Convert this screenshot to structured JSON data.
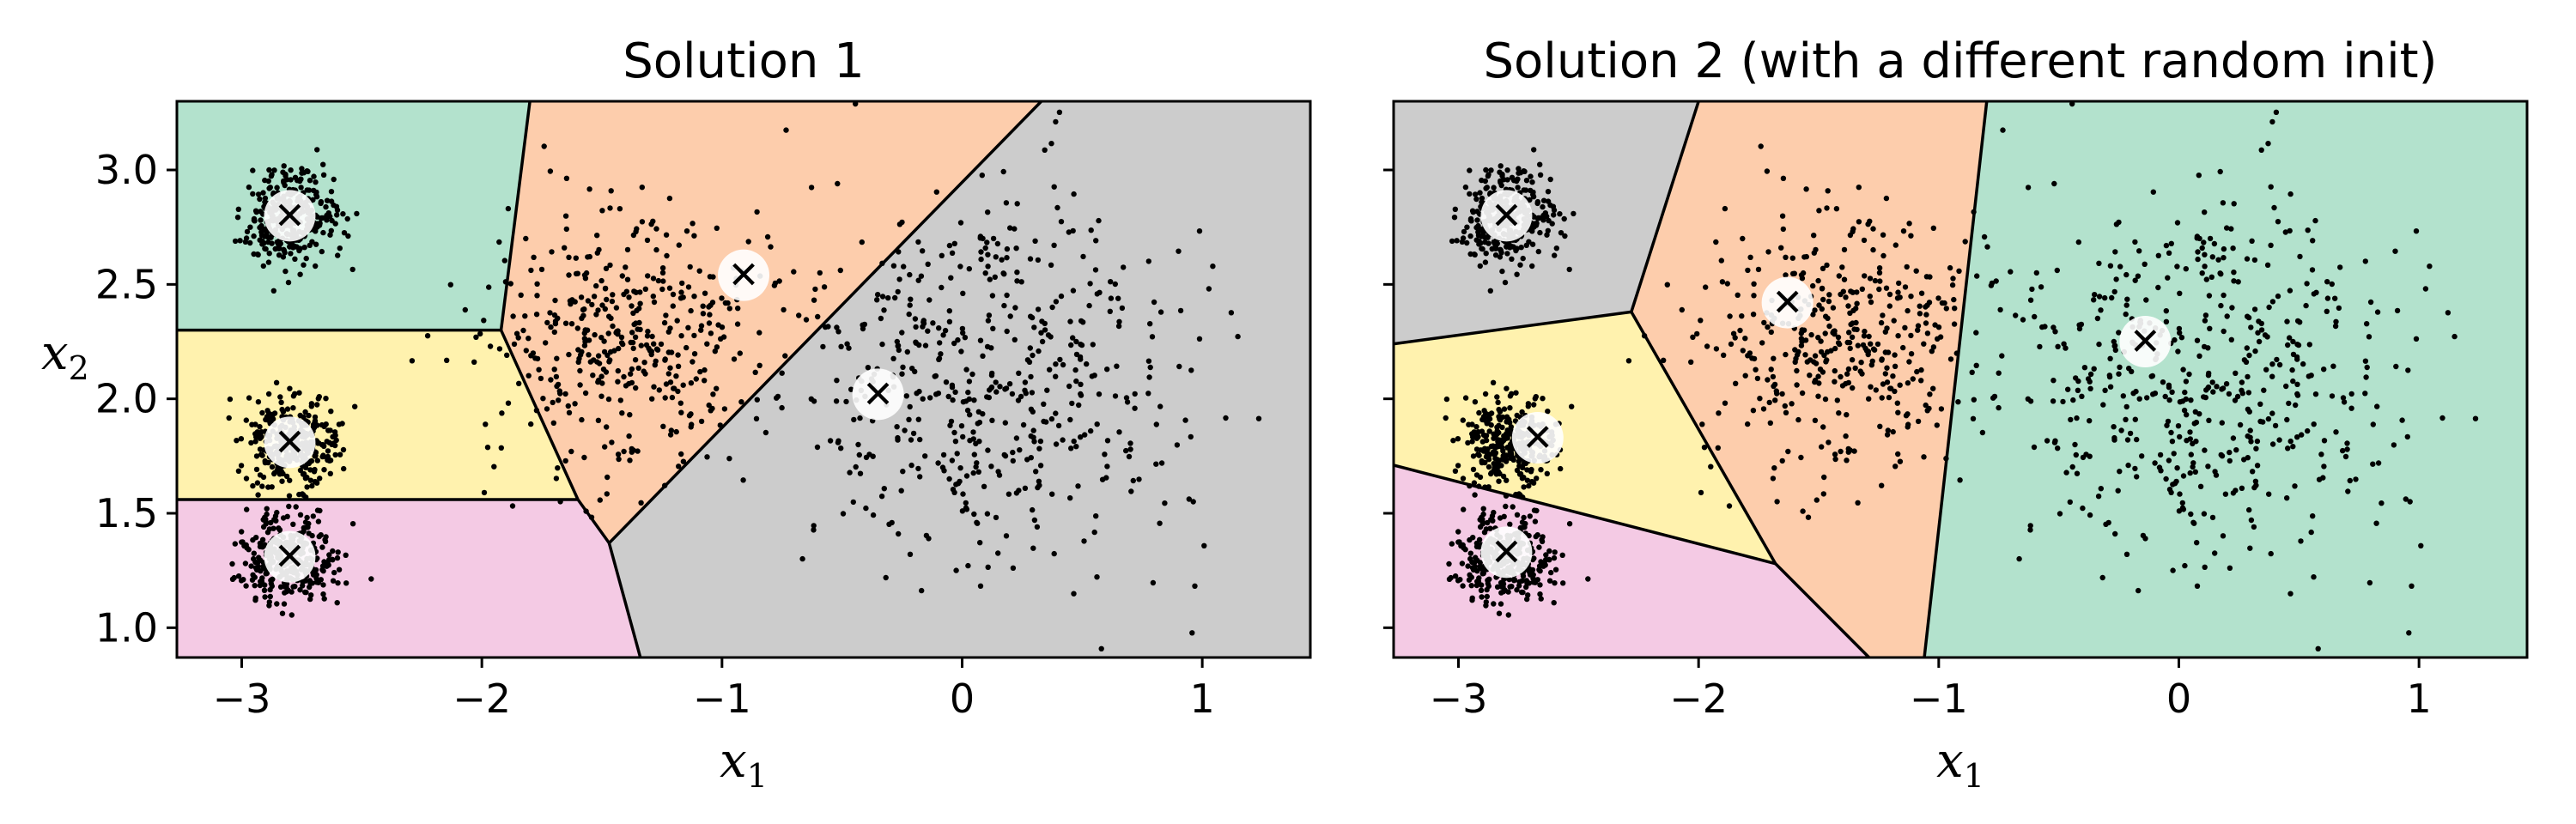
{
  "chart_data": [
    {
      "type": "scatter",
      "title": "Solution 1",
      "xlabel": "x",
      "xlabel_sub": "1",
      "ylabel": "x",
      "ylabel_sub": "2",
      "xlim": [
        -3.27,
        1.45
      ],
      "ylim": [
        0.87,
        3.3
      ],
      "xticks": [
        -3,
        -2,
        -1,
        0,
        1
      ],
      "xtick_labels": [
        "−3",
        "−2",
        "−1",
        "0",
        "1"
      ],
      "yticks": [
        1.0,
        1.5,
        2.0,
        2.5,
        3.0
      ],
      "ytick_labels": [
        "1.0",
        "1.5",
        "2.0",
        "2.5",
        "3.0"
      ],
      "show_yticklabels": true,
      "centroids": [
        {
          "x": -2.8,
          "y": 2.8,
          "label": "✕"
        },
        {
          "x": -2.8,
          "y": 1.81,
          "label": "✕"
        },
        {
          "x": -2.8,
          "y": 1.31,
          "label": "✕"
        },
        {
          "x": -0.91,
          "y": 2.54,
          "label": "✕"
        },
        {
          "x": -0.35,
          "y": 2.02,
          "label": "✕"
        }
      ],
      "regions": [
        {
          "color": "#b3e2cd",
          "polygon": [
            [
              -3.27,
              3.3
            ],
            [
              -1.8,
              3.3
            ],
            [
              -1.92,
              2.3
            ],
            [
              -3.27,
              2.3
            ]
          ]
        },
        {
          "color": "#fdcdac",
          "polygon": [
            [
              -1.8,
              3.3
            ],
            [
              0.33,
              3.3
            ],
            [
              -1.47,
              1.37
            ],
            [
              -1.6,
              1.56
            ],
            [
              -1.92,
              2.3
            ]
          ]
        },
        {
          "color": "#cccccc",
          "polygon": [
            [
              0.33,
              3.3
            ],
            [
              1.45,
              3.3
            ],
            [
              1.45,
              0.87
            ],
            [
              -1.34,
              0.87
            ],
            [
              -1.47,
              1.37
            ]
          ]
        },
        {
          "color": "#fff2ae",
          "polygon": [
            [
              -3.27,
              2.3
            ],
            [
              -1.92,
              2.3
            ],
            [
              -1.6,
              1.56
            ],
            [
              -3.27,
              1.56
            ]
          ]
        },
        {
          "color": "#f4cae4",
          "polygon": [
            [
              -3.27,
              1.56
            ],
            [
              -1.6,
              1.56
            ],
            [
              -1.47,
              1.37
            ],
            [
              -1.34,
              0.87
            ],
            [
              -3.27,
              0.87
            ]
          ]
        }
      ],
      "boundaries": [
        [
          [
            -1.8,
            3.3
          ],
          [
            -1.92,
            2.3
          ]
        ],
        [
          [
            -3.27,
            2.3
          ],
          [
            -1.92,
            2.3
          ]
        ],
        [
          [
            -1.92,
            2.3
          ],
          [
            -1.6,
            1.56
          ]
        ],
        [
          [
            -3.27,
            1.56
          ],
          [
            -1.6,
            1.56
          ]
        ],
        [
          [
            -1.6,
            1.56
          ],
          [
            -1.47,
            1.37
          ]
        ],
        [
          [
            0.33,
            3.3
          ],
          [
            -1.47,
            1.37
          ]
        ],
        [
          [
            -1.47,
            1.37
          ],
          [
            -1.34,
            0.87
          ]
        ]
      ]
    },
    {
      "type": "scatter",
      "title": "Solution 2 (with a different random init)",
      "xlabel": "x",
      "xlabel_sub": "1",
      "ylabel": "",
      "ylabel_sub": "",
      "xlim": [
        -3.27,
        1.45
      ],
      "ylim": [
        0.87,
        3.3
      ],
      "xticks": [
        -3,
        -2,
        -1,
        0,
        1
      ],
      "xtick_labels": [
        "−3",
        "−2",
        "−1",
        "0",
        "1"
      ],
      "yticks": [
        1.0,
        1.5,
        2.0,
        2.5,
        3.0
      ],
      "ytick_labels": [],
      "show_yticklabels": false,
      "centroids": [
        {
          "x": -2.8,
          "y": 2.8,
          "label": "✕"
        },
        {
          "x": -2.67,
          "y": 1.83,
          "label": "✕"
        },
        {
          "x": -2.8,
          "y": 1.33,
          "label": "✕"
        },
        {
          "x": -1.63,
          "y": 2.42,
          "label": "✕"
        },
        {
          "x": -0.14,
          "y": 2.25,
          "label": "✕"
        }
      ],
      "regions": [
        {
          "color": "#cccccc",
          "polygon": [
            [
              -3.27,
              3.3
            ],
            [
              -2.0,
              3.3
            ],
            [
              -2.28,
              2.38
            ],
            [
              -3.27,
              2.24
            ]
          ]
        },
        {
          "color": "#fdcdac",
          "polygon": [
            [
              -2.0,
              3.3
            ],
            [
              -0.8,
              3.3
            ],
            [
              -1.06,
              0.87
            ],
            [
              -1.29,
              0.87
            ],
            [
              -1.68,
              1.28
            ],
            [
              -2.28,
              2.38
            ]
          ]
        },
        {
          "color": "#b3e2cd",
          "polygon": [
            [
              -0.8,
              3.3
            ],
            [
              1.45,
              3.3
            ],
            [
              1.45,
              0.87
            ],
            [
              -1.06,
              0.87
            ]
          ]
        },
        {
          "color": "#fff2ae",
          "polygon": [
            [
              -3.27,
              2.24
            ],
            [
              -2.28,
              2.38
            ],
            [
              -1.68,
              1.28
            ],
            [
              -3.27,
              1.71
            ]
          ]
        },
        {
          "color": "#f4cae4",
          "polygon": [
            [
              -3.27,
              1.71
            ],
            [
              -1.68,
              1.28
            ],
            [
              -1.29,
              0.87
            ],
            [
              -3.27,
              0.87
            ]
          ]
        }
      ],
      "boundaries": [
        [
          [
            -2.0,
            3.3
          ],
          [
            -2.28,
            2.38
          ]
        ],
        [
          [
            -3.27,
            2.24
          ],
          [
            -2.28,
            2.38
          ]
        ],
        [
          [
            -2.28,
            2.38
          ],
          [
            -1.68,
            1.28
          ]
        ],
        [
          [
            -3.27,
            1.71
          ],
          [
            -1.68,
            1.28
          ]
        ],
        [
          [
            -1.68,
            1.28
          ],
          [
            -1.29,
            0.87
          ]
        ],
        [
          [
            -0.8,
            3.3
          ],
          [
            -1.06,
            0.87
          ]
        ]
      ]
    }
  ],
  "instances": {
    "clusters": [
      {
        "center": [
          -2.8,
          2.8
        ],
        "std": 0.1,
        "count": 320
      },
      {
        "center": [
          -2.8,
          1.8
        ],
        "std": 0.1,
        "count": 320
      },
      {
        "center": [
          -2.8,
          1.3
        ],
        "std": 0.1,
        "count": 320
      },
      {
        "center": [
          -1.4,
          2.25
        ],
        "std": 0.3,
        "count": 420
      },
      {
        "center": [
          0.1,
          2.1
        ],
        "std": 0.4,
        "count": 520
      }
    ],
    "seed": 42
  },
  "colors": {
    "instance": "#000000",
    "boundary": "#000000",
    "centroid_circle": "#ffffff",
    "centroid_cross": "#000000",
    "axes": "#000000"
  }
}
